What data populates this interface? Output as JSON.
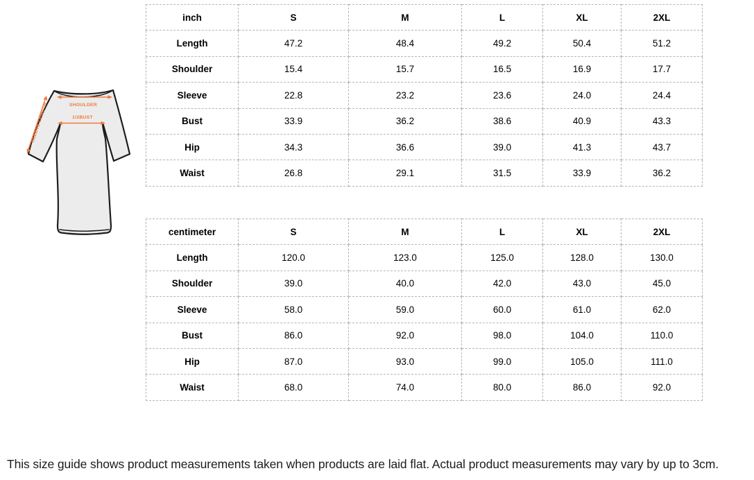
{
  "diagram": {
    "accent_color": "#f0793e",
    "shoulder_label": "SHOULDER",
    "bust_label": "1/2BUST",
    "sleeve_label": "SLEEVE LENGTH"
  },
  "size_guide": {
    "inch_table": {
      "unit_label": "inch",
      "columns": [
        "S",
        "M",
        "L",
        "XL",
        "2XL"
      ],
      "rows": [
        {
          "label": "Length",
          "values": [
            "47.2",
            "48.4",
            "49.2",
            "50.4",
            "51.2"
          ]
        },
        {
          "label": "Shoulder",
          "values": [
            "15.4",
            "15.7",
            "16.5",
            "16.9",
            "17.7"
          ]
        },
        {
          "label": "Sleeve",
          "values": [
            "22.8",
            "23.2",
            "23.6",
            "24.0",
            "24.4"
          ]
        },
        {
          "label": "Bust",
          "values": [
            "33.9",
            "36.2",
            "38.6",
            "40.9",
            "43.3"
          ]
        },
        {
          "label": "Hip",
          "values": [
            "34.3",
            "36.6",
            "39.0",
            "41.3",
            "43.7"
          ]
        },
        {
          "label": "Waist",
          "values": [
            "26.8",
            "29.1",
            "31.5",
            "33.9",
            "36.2"
          ]
        }
      ]
    },
    "cm_table": {
      "unit_label": "centimeter",
      "columns": [
        "S",
        "M",
        "L",
        "XL",
        "2XL"
      ],
      "rows": [
        {
          "label": "Length",
          "values": [
            "120.0",
            "123.0",
            "125.0",
            "128.0",
            "130.0"
          ]
        },
        {
          "label": "Shoulder",
          "values": [
            "39.0",
            "40.0",
            "42.0",
            "43.0",
            "45.0"
          ]
        },
        {
          "label": "Sleeve",
          "values": [
            "58.0",
            "59.0",
            "60.0",
            "61.0",
            "62.0"
          ]
        },
        {
          "label": "Bust",
          "values": [
            "86.0",
            "92.0",
            "98.0",
            "104.0",
            "110.0"
          ]
        },
        {
          "label": "Hip",
          "values": [
            "87.0",
            "93.0",
            "99.0",
            "105.0",
            "111.0"
          ]
        },
        {
          "label": "Waist",
          "values": [
            "68.0",
            "74.0",
            "80.0",
            "86.0",
            "92.0"
          ]
        }
      ]
    }
  },
  "page": {
    "footnote": "This size guide shows product measurements taken when products are laid flat. Actual product measurements may vary by up to 3cm."
  }
}
